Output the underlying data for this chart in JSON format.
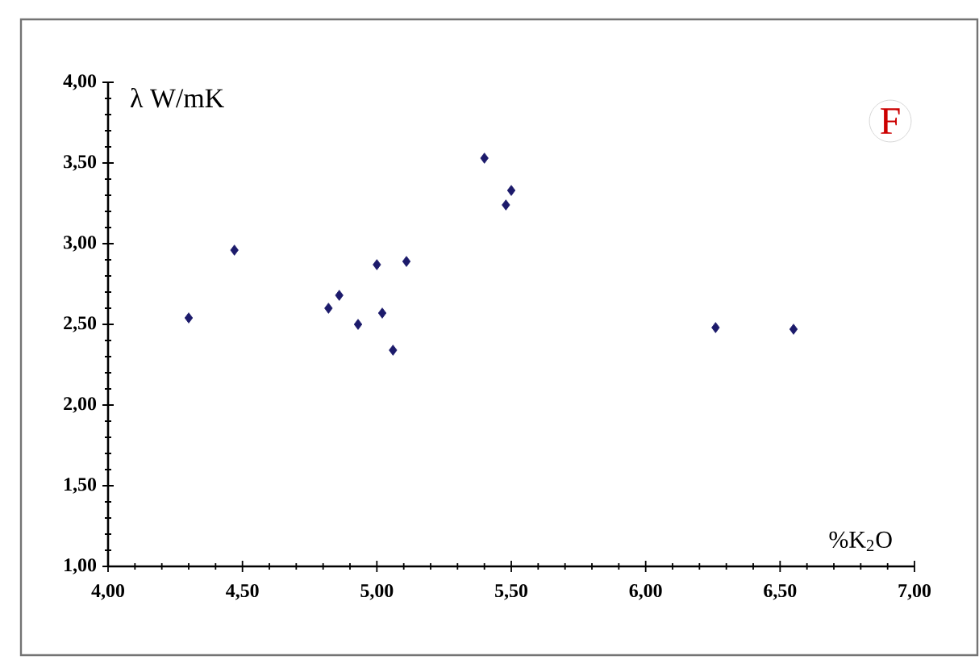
{
  "chart_data": {
    "type": "scatter",
    "xlabel": "%K$_{2}$O",
    "ylabel": "λ  W/mK",
    "annotations": [
      "F"
    ],
    "x": [
      4.3,
      4.47,
      4.82,
      4.86,
      4.93,
      5.0,
      5.02,
      5.06,
      5.11,
      5.4,
      5.48,
      5.5,
      6.26,
      6.55
    ],
    "series": [
      {
        "color": "#1c1a6b",
        "values": [
          2.54,
          2.96,
          2.6,
          2.68,
          2.5,
          2.87,
          2.57,
          2.34,
          2.89,
          3.53,
          3.24,
          3.33,
          2.48,
          2.47
        ]
      }
    ],
    "marker": "diamond",
    "grid": false,
    "xlim": [
      4,
      7
    ],
    "ylim": [
      1,
      4
    ],
    "xticks": [
      {
        "value": 4,
        "label": "4,00"
      },
      {
        "value": 4.5,
        "label": "4,50"
      },
      {
        "value": 5,
        "label": "5,00"
      },
      {
        "value": 5.5,
        "label": "5,50"
      },
      {
        "value": 6,
        "label": "6,00"
      },
      {
        "value": 6.5,
        "label": "6,50"
      },
      {
        "value": 7,
        "label": "7,00"
      }
    ],
    "yticks": [
      {
        "value": 1,
        "label": "1,00"
      },
      {
        "value": 1.5,
        "label": "1,50"
      },
      {
        "value": 2,
        "label": "2,00"
      },
      {
        "value": 2.5,
        "label": "2,50"
      },
      {
        "value": 3,
        "label": "3,00"
      },
      {
        "value": 3.5,
        "label": "3,50"
      },
      {
        "value": 4,
        "label": "4,00"
      }
    ]
  }
}
